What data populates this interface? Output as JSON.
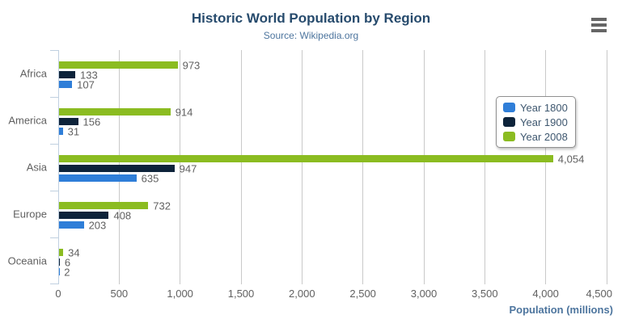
{
  "header": {
    "title": "Historic World Population by Region",
    "subtitle": "Source: Wikipedia.org"
  },
  "export_menu": {
    "icon": "hamburger-menu-icon"
  },
  "colors": {
    "title": "#274b6d",
    "subtitle": "#4d759e",
    "axis_title": "#4d759e",
    "labels": "#606060",
    "legend_text": "#3e576f",
    "gridline": "#c9c9c9",
    "category_axis": "#c0d0e0",
    "series_year_1800": "#2f7ed8",
    "series_year_1900": "#0d233a",
    "series_year_2008": "#8bbc21"
  },
  "chart_data": {
    "type": "bar",
    "orientation": "horizontal",
    "title": "Historic World Population by Region",
    "subtitle": "Source: Wikipedia.org",
    "categories": [
      "Africa",
      "America",
      "Asia",
      "Europe",
      "Oceania"
    ],
    "series": [
      {
        "name": "Year 1800",
        "color": "#2f7ed8",
        "values": [
          107,
          31,
          635,
          203,
          2
        ]
      },
      {
        "name": "Year 1900",
        "color": "#0d233a",
        "values": [
          133,
          156,
          947,
          408,
          6
        ]
      },
      {
        "name": "Year 2008",
        "color": "#8bbc21",
        "values": [
          973,
          914,
          4054,
          732,
          34
        ]
      }
    ],
    "series_draw_order_top_to_bottom": [
      "Year 2008",
      "Year 1900",
      "Year 1800"
    ],
    "xlabel": "Population (millions)",
    "ylabel": "",
    "xlim": [
      0,
      4500
    ],
    "tick_interval": 500,
    "x_tick_labels": [
      "0",
      "500",
      "1,000",
      "1,500",
      "2,000",
      "2,500",
      "3,000",
      "3,500",
      "4,000",
      "4,500"
    ],
    "grid": true,
    "data_labels": true,
    "legend_position": "right-inside"
  }
}
